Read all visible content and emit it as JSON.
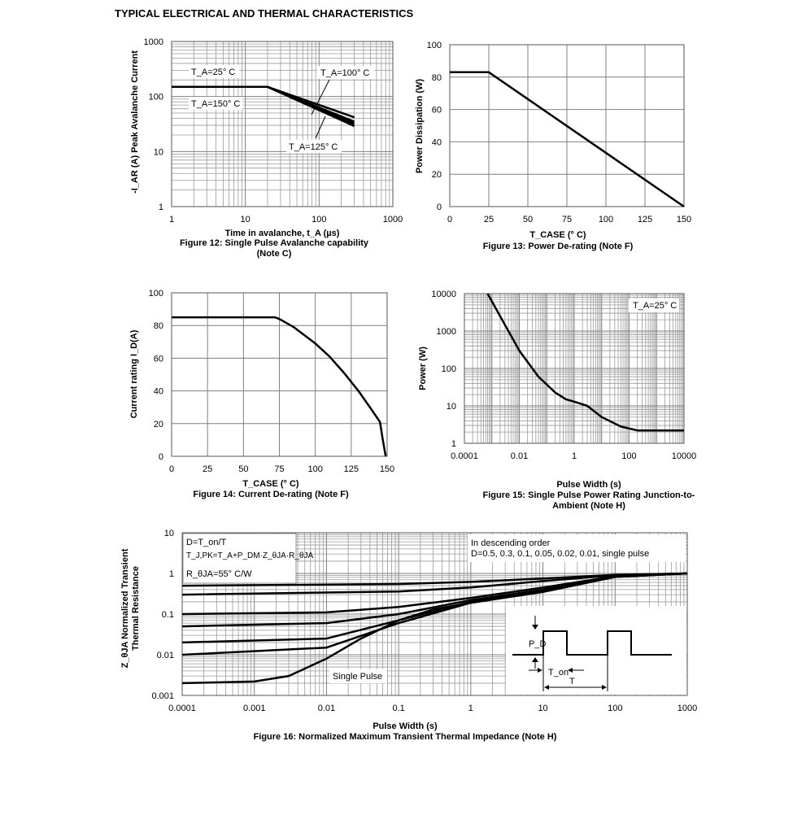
{
  "page": {
    "title": "TYPICAL ELECTRICAL AND THERMAL CHARACTERISTICS"
  },
  "chart_data": [
    {
      "id": "fig12",
      "type": "line",
      "caption": [
        "Figure 12: Single Pulse Avalanche capability",
        "(Note C)"
      ],
      "xlabel": "Time in avalanche, t_A (µs)",
      "ylabel": "-I_AR (A) Peak Avalanche Current",
      "xscale": "log",
      "yscale": "log",
      "xlim": [
        1,
        1000
      ],
      "ylim": [
        1,
        1000
      ],
      "xticks": [
        "1",
        "10",
        "100",
        "1000"
      ],
      "yticks": [
        "1",
        "10",
        "100",
        "1000"
      ],
      "grid": true,
      "annotations": [
        "T_A=25° C",
        "T_A=150° C",
        "T_A=100° C",
        "T_A=125° C"
      ],
      "series": [
        {
          "points": [
            [
              1,
              150
            ],
            [
              20,
              150
            ],
            [
              300,
              42
            ]
          ]
        },
        {
          "points": [
            [
              1,
              150
            ],
            [
              20,
              150
            ],
            [
              300,
              35
            ]
          ]
        },
        {
          "points": [
            [
              1,
              150
            ],
            [
              20,
              150
            ],
            [
              300,
              32
            ]
          ]
        },
        {
          "points": [
            [
              1,
              150
            ],
            [
              20,
              150
            ],
            [
              300,
              29
            ]
          ]
        }
      ]
    },
    {
      "id": "fig13",
      "type": "line",
      "caption": [
        "Figure 13: Power De-rating (Note F)"
      ],
      "xlabel": "T_CASE (° C)",
      "ylabel": "Power Dissipation (W)",
      "xlim": [
        0,
        150
      ],
      "ylim": [
        0,
        100
      ],
      "xticks": [
        "0",
        "25",
        "50",
        "75",
        "100",
        "125",
        "150"
      ],
      "yticks": [
        "0",
        "20",
        "40",
        "60",
        "80",
        "100"
      ],
      "grid": true,
      "series": [
        {
          "points": [
            [
              0,
              83
            ],
            [
              25,
              83
            ],
            [
              150,
              0
            ]
          ]
        }
      ]
    },
    {
      "id": "fig14",
      "type": "line",
      "caption": [
        "Figure 14: Current De-rating (Note F)"
      ],
      "xlabel": "T_CASE (° C)",
      "ylabel": "Current rating I_D(A)",
      "xlim": [
        0,
        150
      ],
      "ylim": [
        0,
        100
      ],
      "xticks": [
        "0",
        "25",
        "50",
        "75",
        "100",
        "125",
        "150"
      ],
      "yticks": [
        "0",
        "20",
        "40",
        "60",
        "80",
        "100"
      ],
      "grid": true,
      "series": [
        {
          "points": [
            [
              0,
              85
            ],
            [
              72,
              85
            ],
            [
              75,
              84
            ],
            [
              85,
              79
            ],
            [
              100,
              69
            ],
            [
              110,
              61
            ],
            [
              120,
              51
            ],
            [
              130,
              40
            ],
            [
              138,
              30
            ],
            [
              145,
              21
            ],
            [
              147,
              10
            ],
            [
              149,
              0
            ]
          ]
        }
      ]
    },
    {
      "id": "fig15",
      "type": "line",
      "caption": [
        "Figure 15: Single Pulse Power Rating Junction-to-",
        "Ambient (Note H)"
      ],
      "xlabel": "Pulse Width (s)",
      "ylabel": "Power (W)",
      "xscale": "log",
      "yscale": "log",
      "xlim": [
        0.0001,
        10000
      ],
      "ylim": [
        1,
        10000
      ],
      "xticks": [
        "0.0001",
        "0.01",
        "1",
        "100",
        "10000"
      ],
      "yticks": [
        "1",
        "10",
        "100",
        "1000",
        "10000"
      ],
      "grid": true,
      "annotations": [
        "T_A=25° C"
      ],
      "series": [
        {
          "points": [
            [
              0.0007,
              10000
            ],
            [
              0.002,
              2500
            ],
            [
              0.01,
              300
            ],
            [
              0.05,
              60
            ],
            [
              0.2,
              23
            ],
            [
              0.5,
              15
            ],
            [
              1,
              13
            ],
            [
              3,
              10
            ],
            [
              10,
              5
            ],
            [
              50,
              2.8
            ],
            [
              200,
              2.2
            ],
            [
              10000,
              2.2
            ]
          ]
        }
      ]
    },
    {
      "id": "fig16",
      "type": "line",
      "caption": [
        "Figure 16: Normalized Maximum Transient Thermal Impedance (Note H)"
      ],
      "xlabel": "Pulse Width (s)",
      "ylabel": [
        "Z_θJA Normalized Transient",
        "Thermal Resistance"
      ],
      "xscale": "log",
      "yscale": "log",
      "xlim": [
        0.0001,
        1000
      ],
      "ylim": [
        0.001,
        10
      ],
      "xticks": [
        "0.0001",
        "0.001",
        "0.01",
        "0.1",
        "1",
        "10",
        "100",
        "1000"
      ],
      "yticks": [
        "0.001",
        "0.01",
        "0.1",
        "1",
        "10"
      ],
      "grid": true,
      "legend_box": [
        "D=T_on/T",
        "T_J,PK=T_A+P_DM·Z_θJA·R_θJA",
        "R_θJA=55° C/W"
      ],
      "legend_right": [
        "In descending order",
        "D=0.5, 0.3, 0.1, 0.05, 0.02, 0.01, single pulse"
      ],
      "annotations": [
        "Single Pulse",
        "P_D",
        "T_on",
        "T"
      ],
      "series": [
        {
          "name": "D=0.5",
          "points": [
            [
              0.0001,
              0.5
            ],
            [
              0.1,
              0.55
            ],
            [
              1,
              0.62
            ],
            [
              10,
              0.75
            ],
            [
              100,
              0.92
            ],
            [
              1000,
              1
            ]
          ]
        },
        {
          "name": "D=0.3",
          "points": [
            [
              0.0001,
              0.3
            ],
            [
              0.1,
              0.36
            ],
            [
              1,
              0.45
            ],
            [
              10,
              0.65
            ],
            [
              100,
              0.9
            ],
            [
              1000,
              1
            ]
          ]
        },
        {
          "name": "D=0.1",
          "points": [
            [
              0.0001,
              0.1
            ],
            [
              0.01,
              0.11
            ],
            [
              0.1,
              0.15
            ],
            [
              1,
              0.25
            ],
            [
              10,
              0.45
            ],
            [
              100,
              0.85
            ],
            [
              1000,
              1
            ]
          ]
        },
        {
          "name": "D=0.05",
          "points": [
            [
              0.0001,
              0.05
            ],
            [
              0.01,
              0.06
            ],
            [
              0.1,
              0.1
            ],
            [
              1,
              0.22
            ],
            [
              10,
              0.4
            ],
            [
              100,
              0.85
            ],
            [
              1000,
              1
            ]
          ]
        },
        {
          "name": "D=0.02",
          "points": [
            [
              0.0001,
              0.02
            ],
            [
              0.01,
              0.025
            ],
            [
              0.1,
              0.07
            ],
            [
              1,
              0.2
            ],
            [
              10,
              0.38
            ],
            [
              100,
              0.83
            ],
            [
              1000,
              1
            ]
          ]
        },
        {
          "name": "D=0.01",
          "points": [
            [
              0.0001,
              0.01
            ],
            [
              0.01,
              0.015
            ],
            [
              0.1,
              0.06
            ],
            [
              1,
              0.19
            ],
            [
              10,
              0.36
            ],
            [
              100,
              0.82
            ],
            [
              1000,
              1
            ]
          ]
        },
        {
          "name": "single pulse",
          "points": [
            [
              0.0001,
              0.002
            ],
            [
              0.001,
              0.0022
            ],
            [
              0.003,
              0.003
            ],
            [
              0.01,
              0.008
            ],
            [
              0.03,
              0.025
            ],
            [
              0.1,
              0.07
            ],
            [
              0.3,
              0.13
            ],
            [
              1,
              0.19
            ],
            [
              10,
              0.35
            ],
            [
              100,
              0.82
            ],
            [
              1000,
              1
            ]
          ]
        }
      ]
    }
  ]
}
